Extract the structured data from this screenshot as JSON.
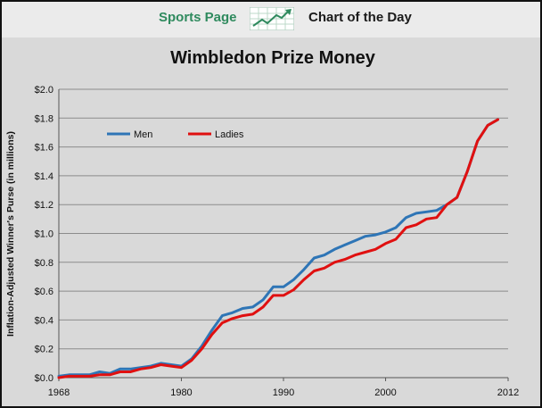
{
  "banner": {
    "left_text": "Sports Page",
    "right_text": "Chart of the Day",
    "icon": "trend-arrow-icon",
    "left_color": "#2f8a5e"
  },
  "chart_data": {
    "type": "line",
    "title": "Wimbledon Prize Money",
    "xlabel": "",
    "ylabel": "Inflation-Adjusted  Winner's Purse (in millions)",
    "xlim": [
      1968,
      2012
    ],
    "ylim": [
      0,
      2.0
    ],
    "x_ticks": [
      "1968",
      "1980",
      "1990",
      "2000",
      "2012"
    ],
    "y_ticks": [
      "$0.0",
      "$0.2",
      "$0.4",
      "$0.6",
      "$0.8",
      "$1.0",
      "$1.2",
      "$1.4",
      "$1.6",
      "$1.8",
      "$2.0"
    ],
    "grid": "horizontal",
    "legend_position": "top-left",
    "x": [
      1968,
      1969,
      1970,
      1971,
      1972,
      1973,
      1974,
      1975,
      1976,
      1977,
      1978,
      1979,
      1980,
      1981,
      1982,
      1983,
      1984,
      1985,
      1986,
      1987,
      1988,
      1989,
      1990,
      1991,
      1992,
      1993,
      1994,
      1995,
      1996,
      1997,
      1998,
      1999,
      2000,
      2001,
      2002,
      2003,
      2004,
      2005,
      2006,
      2007,
      2008,
      2009,
      2010,
      2011,
      2012
    ],
    "series": [
      {
        "name": "Men",
        "color": "#2e75b6",
        "values": [
          0.01,
          0.02,
          0.02,
          0.02,
          0.04,
          0.03,
          0.06,
          0.06,
          0.07,
          0.08,
          0.1,
          0.09,
          0.08,
          0.13,
          0.22,
          0.33,
          0.43,
          0.45,
          0.48,
          0.49,
          0.54,
          0.63,
          0.63,
          0.68,
          0.75,
          0.83,
          0.85,
          0.89,
          0.92,
          0.95,
          0.98,
          0.99,
          1.01,
          1.04,
          1.11,
          1.14,
          1.15,
          1.16,
          1.2,
          1.25,
          1.43,
          1.64,
          1.75,
          1.79,
          null
        ]
      },
      {
        "name": "Ladies",
        "color": "#e01010",
        "values": [
          0.0,
          0.01,
          0.01,
          0.01,
          0.02,
          0.02,
          0.04,
          0.04,
          0.06,
          0.07,
          0.09,
          0.08,
          0.07,
          0.12,
          0.2,
          0.3,
          0.38,
          0.41,
          0.43,
          0.44,
          0.49,
          0.57,
          0.57,
          0.61,
          0.68,
          0.74,
          0.76,
          0.8,
          0.82,
          0.85,
          0.87,
          0.89,
          0.93,
          0.96,
          1.04,
          1.06,
          1.1,
          1.11,
          1.2,
          1.25,
          1.43,
          1.64,
          1.75,
          1.79,
          null
        ]
      }
    ]
  }
}
